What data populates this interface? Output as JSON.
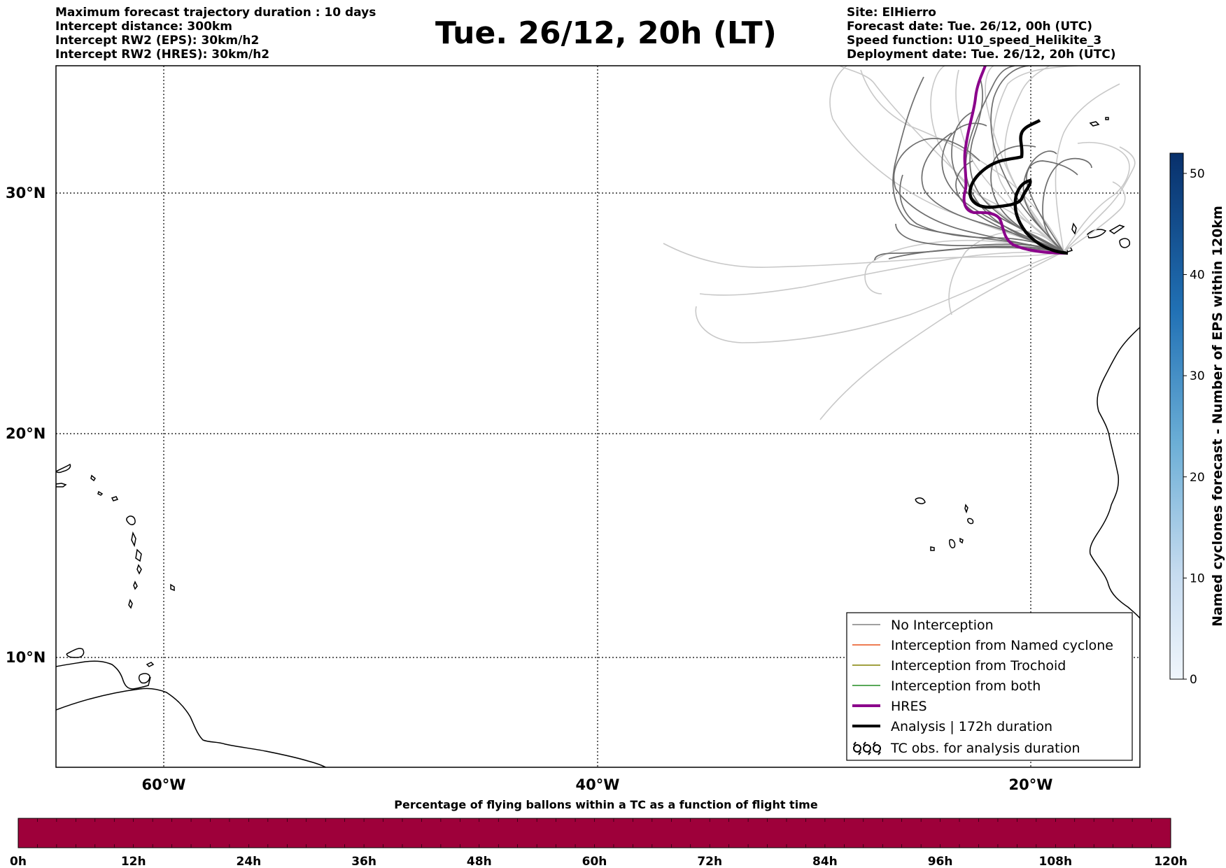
{
  "header": {
    "left_lines": [
      "Maximum forecast trajectory duration : 10 days",
      "Intercept distance: 300km",
      "Intercept RW2 (EPS):  30km/h2",
      "Intercept RW2 (HRES): 30km/h2"
    ],
    "title": "Tue. 26/12, 20h (LT)",
    "right_lines": [
      "Site: ElHierro",
      "Forecast date: Tue. 26/12, 00h (UTC)",
      "Speed function: U10_speed_Helikite_3",
      "Deployment date: Tue. 26/12, 20h (UTC)"
    ]
  },
  "map": {
    "lat_labels": [
      "30°N",
      "20°N",
      "10°N"
    ],
    "lon_labels": [
      "60°W",
      "40°W",
      "20°W"
    ],
    "colors": {
      "no_interception": "#808080",
      "named_cyclone": "#e8501a",
      "trochoid": "#808000",
      "both": "#228b22",
      "hres": "#8b008b",
      "analysis": "#000000"
    }
  },
  "legend": {
    "items": [
      {
        "label": "No Interception",
        "icon": "thin-gray-line"
      },
      {
        "label": "Interception from Named cyclone",
        "icon": "thin-orange-line"
      },
      {
        "label": "Interception from Trochoid",
        "icon": "thin-olive-line"
      },
      {
        "label": "Interception from both",
        "icon": "thin-green-line"
      },
      {
        "label": "HRES",
        "icon": "thick-purple-line"
      },
      {
        "label": "Analysis | 172h duration",
        "icon": "thick-black-line"
      },
      {
        "label": "TC obs. for analysis duration",
        "icon": "tc-symbol-icons"
      }
    ],
    "tc_symbol": "ᴒᴒᴒ"
  },
  "colorbar": {
    "label": "Named cyclones forecast - Number of EPS within 120km",
    "ticks": [
      "0",
      "10",
      "20",
      "30",
      "40",
      "50"
    ],
    "range": [
      0,
      52
    ]
  },
  "bottom_bar": {
    "title": "Percentage of flying ballons within a TC as a function of flight time",
    "ticks": [
      "0h",
      "12h",
      "24h",
      "36h",
      "48h",
      "60h",
      "72h",
      "84h",
      "96h",
      "108h",
      "120h"
    ],
    "color": "#9e003a"
  }
}
